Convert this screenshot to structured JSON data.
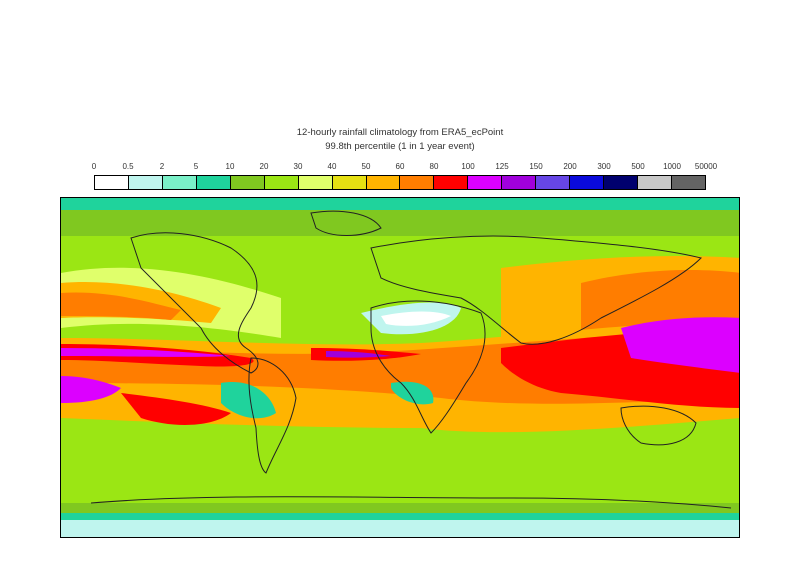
{
  "title": "12-hourly rainfall climatology from ERA5_ecPoint",
  "subtitle": "99.8th percentile (1 in 1 year event)",
  "legend": {
    "labels": [
      "0",
      "0.5",
      "2",
      "5",
      "10",
      "20",
      "30",
      "40",
      "50",
      "60",
      "80",
      "100",
      "125",
      "150",
      "200",
      "300",
      "500",
      "1000",
      "50000"
    ],
    "colors": [
      "#ffffff",
      "#bff5ee",
      "#7af0c8",
      "#1fd39c",
      "#80c820",
      "#9be614",
      "#e0ff6b",
      "#e6e012",
      "#ffb400",
      "#ff7d00",
      "#ff0000",
      "#dc00ff",
      "#a000dc",
      "#6646e6",
      "#0a0adc",
      "#00006e",
      "#c8c8c8",
      "#646464"
    ]
  },
  "map": {
    "projection": "cylindrical",
    "ocean_base_color": "#e0ff6b",
    "land_outline_color": "#222222"
  }
}
